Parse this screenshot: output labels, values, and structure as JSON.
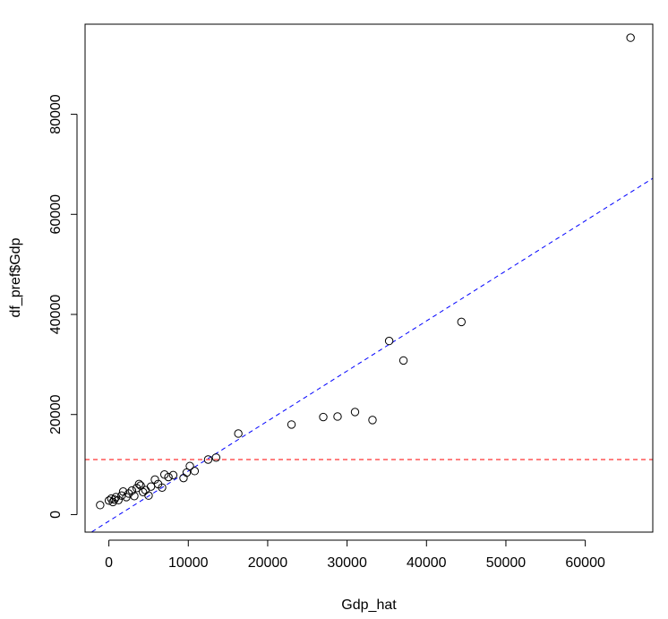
{
  "chart_data": {
    "type": "scatter",
    "title": "",
    "xlabel": "Gdp_hat",
    "ylabel": "df_pref$Gdp",
    "xlim": [
      -3000,
      68500
    ],
    "ylim": [
      -3500,
      98000
    ],
    "x_ticks": [
      0,
      10000,
      20000,
      30000,
      40000,
      50000,
      60000
    ],
    "x_tick_labels": [
      "0",
      "10000",
      "20000",
      "30000",
      "40000",
      "50000",
      "60000"
    ],
    "y_ticks": [
      0,
      20000,
      40000,
      60000,
      80000
    ],
    "y_tick_labels": [
      "0",
      "20000",
      "40000",
      "60000",
      "80000"
    ],
    "grid": false,
    "points": {
      "x": [
        -1100,
        0,
        300,
        500,
        700,
        900,
        1200,
        1600,
        1800,
        2200,
        2500,
        2900,
        3200,
        3500,
        3800,
        4000,
        4300,
        4600,
        5000,
        5300,
        5800,
        6200,
        6700,
        7000,
        7500,
        8100,
        9400,
        9800,
        10200,
        10800,
        12500,
        13500,
        16300,
        23000,
        27000,
        28800,
        31000,
        33200,
        35300,
        37100,
        44400,
        65700
      ],
      "y": [
        1900,
        2800,
        3200,
        2500,
        3000,
        3500,
        2900,
        3800,
        4600,
        3500,
        4200,
        4800,
        3700,
        5300,
        6100,
        5800,
        4500,
        4900,
        3800,
        5600,
        7000,
        6100,
        5400,
        8000,
        7500,
        7900,
        7300,
        8400,
        9700,
        8700,
        11000,
        11400,
        16200,
        18000,
        19500,
        19600,
        20500,
        18900,
        34700,
        30800,
        38500,
        95300
      ]
    },
    "reference_lines": [
      {
        "kind": "abline",
        "intercept": -1300,
        "slope": 1.0,
        "color": "#0000ff",
        "dash": "dashed"
      },
      {
        "kind": "hline",
        "y": 11000,
        "color": "#ff0000",
        "dash": "dashed"
      }
    ]
  }
}
